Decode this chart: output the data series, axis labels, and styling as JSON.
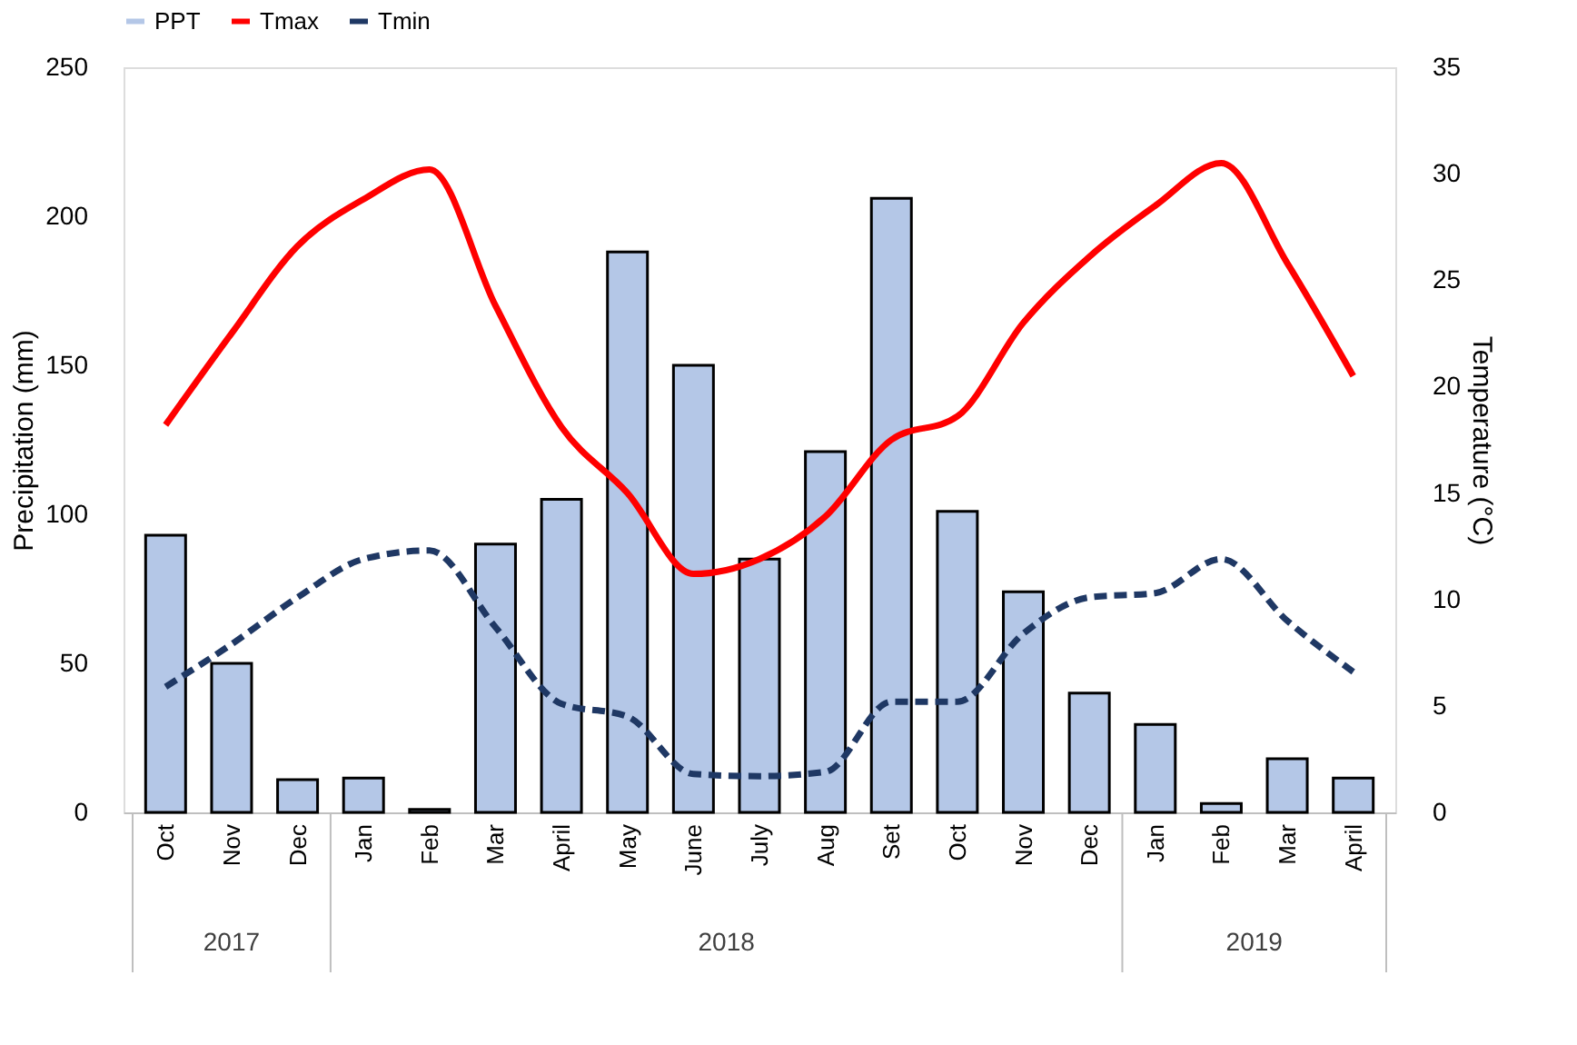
{
  "chart_data": {
    "type": "bar",
    "categories": [
      "Oct",
      "Nov",
      "Dec",
      "Jan",
      "Feb",
      "Mar",
      "April",
      "May",
      "June",
      "July",
      "Aug",
      "Set",
      "Oct",
      "Nov",
      "Dec",
      "Jan",
      "Feb",
      "Mar",
      "April"
    ],
    "series": [
      {
        "name": "PPT",
        "color": "#b4c7e7",
        "values": [
          93,
          50,
          11,
          11.5,
          1,
          90,
          105,
          188,
          150,
          85,
          121,
          206,
          101,
          74,
          40,
          29.5,
          3,
          18,
          11.5
        ]
      },
      {
        "name": "Tmax",
        "type": "line",
        "axis": "y2",
        "color": "#ff0000",
        "line_style": "solid",
        "values": [
          18.2,
          22.5,
          26.6,
          28.8,
          30.2,
          23.8,
          18.1,
          15.0,
          11.2,
          11.9,
          13.9,
          17.5,
          18.6,
          23.0,
          26.1,
          28.5,
          30.5,
          25.8,
          20.5
        ]
      },
      {
        "name": "Tmin",
        "type": "line",
        "axis": "y2",
        "color": "#1f3864",
        "line_style": "dashed",
        "values": [
          5.9,
          7.9,
          10.1,
          11.9,
          12.3,
          8.7,
          5.1,
          4.5,
          1.8,
          1.7,
          1.9,
          5.2,
          5.2,
          8.4,
          10.1,
          10.3,
          11.9,
          9.0,
          6.6
        ]
      }
    ],
    "ylabel": "Precipitation (mm)",
    "y2label": "Temperature (°C)",
    "ylim": [
      0,
      250
    ],
    "yticks": [
      0,
      50,
      100,
      150,
      200,
      250
    ],
    "y2lim": [
      0,
      35
    ],
    "y2ticks": [
      0,
      5,
      10,
      15,
      20,
      25,
      30,
      35
    ],
    "grid": false,
    "legend": "top",
    "annotations": [
      "2017",
      "2018",
      "2019"
    ]
  }
}
